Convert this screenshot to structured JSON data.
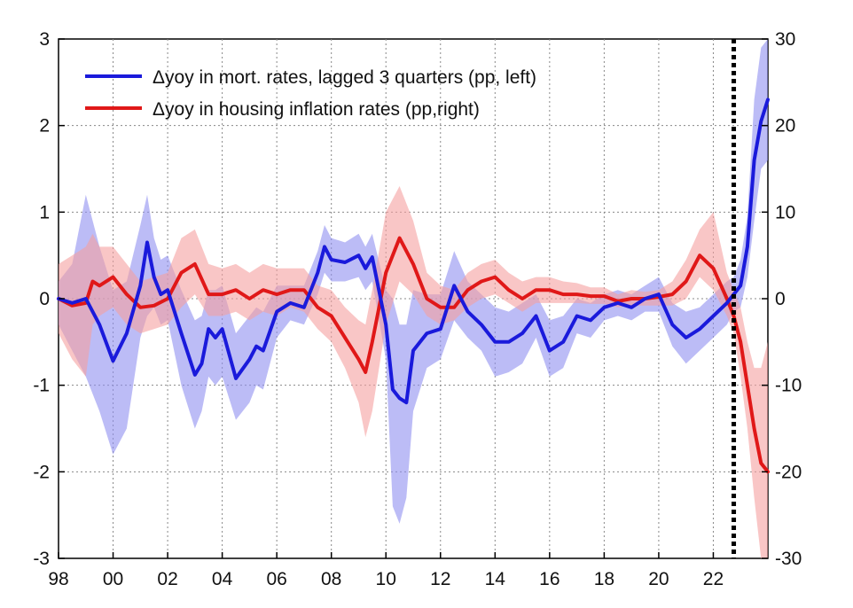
{
  "chart_data": {
    "type": "line",
    "x_tick_labels": [
      "98",
      "00",
      "02",
      "04",
      "06",
      "08",
      "10",
      "12",
      "14",
      "16",
      "18",
      "20",
      "22"
    ],
    "x_ticks": [
      1998,
      2000,
      2002,
      2004,
      2006,
      2008,
      2010,
      2012,
      2014,
      2016,
      2018,
      2020,
      2022
    ],
    "xlim": [
      1998,
      2024
    ],
    "left_axis": {
      "ylim": [
        -3,
        3
      ],
      "ticks": [
        -3,
        -2,
        -1,
        0,
        1,
        2,
        3
      ],
      "tick_labels": [
        "-3",
        "-2",
        "-1",
        "0",
        "1",
        "2",
        "3"
      ]
    },
    "right_axis": {
      "ylim": [
        -30,
        30
      ],
      "ticks": [
        -30,
        -20,
        -10,
        0,
        10,
        20,
        30
      ],
      "tick_labels": [
        "-30",
        "-20",
        "-10",
        "0",
        "10",
        "20",
        "30"
      ]
    },
    "grid": true,
    "grid_style": "dotted",
    "vertical_marker": {
      "x": 2022.75,
      "style": "dotted",
      "color": "#000000"
    },
    "legend_position": "top-left",
    "series": [
      {
        "name": "Δyoy in mort. rates, lagged 3 quarters (pp, left)",
        "axis": "left",
        "color": "#1a1adb",
        "band_color": "#8f8ff0",
        "x": [
          1998.0,
          1998.5,
          1999.0,
          1999.5,
          2000.0,
          2000.5,
          2001.0,
          2001.25,
          2001.5,
          2001.75,
          2002.0,
          2002.5,
          2003.0,
          2003.25,
          2003.5,
          2003.75,
          2004.0,
          2004.5,
          2005.0,
          2005.25,
          2005.5,
          2006.0,
          2006.5,
          2007.0,
          2007.5,
          2007.75,
          2008.0,
          2008.5,
          2009.0,
          2009.25,
          2009.5,
          2010.0,
          2010.25,
          2010.5,
          2010.75,
          2011.0,
          2011.5,
          2012.0,
          2012.5,
          2013.0,
          2013.5,
          2014.0,
          2014.5,
          2015.0,
          2015.5,
          2016.0,
          2016.5,
          2017.0,
          2017.5,
          2018.0,
          2018.5,
          2019.0,
          2019.5,
          2020.0,
          2020.5,
          2021.0,
          2021.5,
          2022.0,
          2022.5,
          2022.75,
          2023.0,
          2023.25,
          2023.5,
          2023.75,
          2024.0
        ],
        "values": [
          0.0,
          -0.05,
          0.0,
          -0.3,
          -0.72,
          -0.4,
          0.15,
          0.65,
          0.25,
          0.05,
          0.1,
          -0.4,
          -0.88,
          -0.75,
          -0.35,
          -0.45,
          -0.35,
          -0.92,
          -0.7,
          -0.55,
          -0.6,
          -0.15,
          -0.05,
          -0.1,
          0.3,
          0.6,
          0.45,
          0.42,
          0.5,
          0.35,
          0.48,
          -0.3,
          -1.05,
          -1.15,
          -1.2,
          -0.6,
          -0.4,
          -0.35,
          0.15,
          -0.15,
          -0.3,
          -0.5,
          -0.5,
          -0.4,
          -0.2,
          -0.6,
          -0.5,
          -0.2,
          -0.25,
          -0.1,
          -0.05,
          -0.1,
          0.0,
          0.05,
          -0.3,
          -0.45,
          -0.35,
          -0.2,
          -0.05,
          0.05,
          0.15,
          0.6,
          1.6,
          2.05,
          2.3
        ],
        "lower": [
          -0.3,
          -0.6,
          -0.9,
          -1.3,
          -1.8,
          -1.5,
          -0.45,
          -0.2,
          -0.1,
          -0.3,
          -0.25,
          -1.0,
          -1.5,
          -1.3,
          -0.9,
          -1.0,
          -0.9,
          -1.4,
          -1.2,
          -1.0,
          -1.05,
          -0.45,
          -0.25,
          -0.3,
          0.05,
          0.3,
          0.2,
          0.2,
          0.25,
          0.1,
          0.2,
          -0.7,
          -2.4,
          -2.6,
          -2.3,
          -1.3,
          -0.8,
          -0.7,
          -0.25,
          -0.45,
          -0.6,
          -0.9,
          -0.85,
          -0.75,
          -0.45,
          -0.9,
          -0.8,
          -0.4,
          -0.45,
          -0.25,
          -0.2,
          -0.25,
          -0.15,
          -0.15,
          -0.55,
          -0.75,
          -0.6,
          -0.45,
          -0.3,
          -0.15,
          -0.1,
          0.25,
          0.9,
          1.5,
          1.6
        ],
        "upper": [
          0.2,
          0.4,
          1.2,
          0.6,
          0.1,
          0.2,
          0.85,
          1.2,
          0.7,
          0.45,
          0.5,
          0.1,
          -0.25,
          -0.2,
          0.1,
          0.1,
          0.15,
          -0.4,
          -0.2,
          -0.1,
          -0.15,
          0.15,
          0.15,
          0.15,
          0.55,
          0.85,
          0.7,
          0.65,
          0.75,
          0.6,
          0.75,
          0.1,
          0.0,
          -0.3,
          -0.3,
          0.1,
          0.05,
          0.05,
          0.55,
          0.2,
          0.05,
          -0.1,
          -0.15,
          -0.05,
          0.05,
          -0.25,
          -0.2,
          0.0,
          -0.05,
          0.05,
          0.1,
          0.05,
          0.15,
          0.25,
          -0.05,
          -0.15,
          -0.1,
          0.05,
          0.2,
          0.25,
          0.45,
          0.95,
          2.3,
          2.9,
          3.0
        ]
      },
      {
        "name": "Δyoy in housing inflation rates (pp,right)",
        "axis": "right",
        "color": "#e01818",
        "band_color": "#f5a0a0",
        "x": [
          1998.0,
          1998.5,
          1999.0,
          1999.25,
          1999.5,
          2000.0,
          2000.5,
          2001.0,
          2001.5,
          2002.0,
          2002.5,
          2003.0,
          2003.5,
          2004.0,
          2004.5,
          2005.0,
          2005.5,
          2006.0,
          2006.5,
          2007.0,
          2007.5,
          2008.0,
          2008.5,
          2009.0,
          2009.25,
          2009.5,
          2010.0,
          2010.5,
          2011.0,
          2011.5,
          2012.0,
          2012.5,
          2013.0,
          2013.5,
          2014.0,
          2014.5,
          2015.0,
          2015.5,
          2016.0,
          2016.5,
          2017.0,
          2017.5,
          2018.0,
          2018.5,
          2019.0,
          2019.5,
          2020.0,
          2020.5,
          2021.0,
          2021.5,
          2022.0,
          2022.5,
          2022.75,
          2023.0,
          2023.25,
          2023.5,
          2023.75,
          2024.0
        ],
        "values": [
          0.0,
          -0.8,
          -0.5,
          2.0,
          1.5,
          2.5,
          0.5,
          -1.0,
          -0.8,
          0.0,
          3.0,
          4.0,
          0.5,
          0.5,
          1.0,
          0.0,
          1.0,
          0.5,
          1.0,
          1.0,
          -1.0,
          -2.0,
          -4.5,
          -7.0,
          -8.5,
          -5.0,
          3.0,
          7.0,
          4.0,
          0.0,
          -1.0,
          -1.0,
          1.0,
          2.0,
          2.5,
          1.0,
          0.0,
          1.0,
          1.0,
          0.5,
          0.5,
          0.3,
          0.3,
          -0.3,
          0.0,
          0.0,
          0.2,
          0.5,
          2.0,
          5.0,
          3.5,
          0.0,
          -2.0,
          -5.0,
          -10.0,
          -15.0,
          -19.0,
          -20.0
        ],
        "lower": [
          -4.0,
          -7.0,
          -9.0,
          -3.0,
          -2.0,
          -1.0,
          -3.0,
          -4.0,
          -3.5,
          -3.0,
          -1.0,
          0.5,
          -2.0,
          -2.0,
          -1.5,
          -2.5,
          -1.5,
          -2.0,
          -1.0,
          -1.5,
          -3.5,
          -5.0,
          -8.0,
          -12.0,
          -16.0,
          -13.0,
          -3.0,
          2.0,
          0.5,
          -2.0,
          -3.0,
          -2.5,
          -1.0,
          0.0,
          0.5,
          -0.5,
          -1.5,
          -0.5,
          -0.5,
          -0.5,
          -0.5,
          -0.6,
          -0.6,
          -1.0,
          -0.8,
          -0.8,
          -0.8,
          -0.8,
          0.0,
          2.5,
          1.0,
          -2.0,
          -4.0,
          -9.0,
          -15.0,
          -23.0,
          -30.0,
          -30.0
        ],
        "upper": [
          4.0,
          5.0,
          6.0,
          7.5,
          6.0,
          6.0,
          4.0,
          2.0,
          2.5,
          3.0,
          7.0,
          8.0,
          4.0,
          3.5,
          4.0,
          3.0,
          4.0,
          3.5,
          3.5,
          3.5,
          1.5,
          1.0,
          -1.0,
          -2.5,
          -3.0,
          1.0,
          10.0,
          13.0,
          9.0,
          3.0,
          1.5,
          1.0,
          3.0,
          4.0,
          4.5,
          3.0,
          2.0,
          2.5,
          2.5,
          2.0,
          1.8,
          1.3,
          1.3,
          0.5,
          1.0,
          0.8,
          1.0,
          2.0,
          4.5,
          8.0,
          10.0,
          3.0,
          1.0,
          -1.0,
          -5.0,
          -8.0,
          -8.0,
          -5.0
        ]
      }
    ]
  }
}
